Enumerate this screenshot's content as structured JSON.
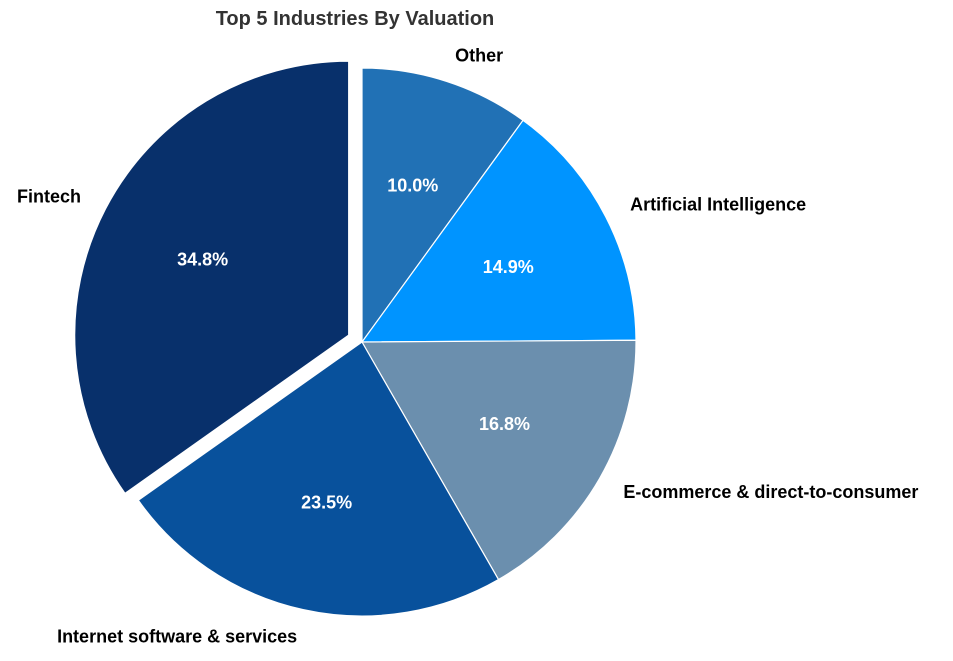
{
  "chart_data": {
    "type": "pie",
    "title": "Top 5 Industries By Valuation",
    "start_angle_deg": 90,
    "direction": "clockwise",
    "slices": [
      {
        "label": "Other",
        "pct_label": "10.0%",
        "value": 10.0,
        "color": "#2171b5",
        "explode": false
      },
      {
        "label": "Artificial Intelligence",
        "pct_label": "14.9%",
        "value": 14.9,
        "color": "#0094ff",
        "explode": false
      },
      {
        "label": "E-commerce & direct-to-consumer",
        "pct_label": "16.8%",
        "value": 16.8,
        "color": "#6b8fae",
        "explode": false
      },
      {
        "label": "Internet software & services",
        "pct_label": "23.5%",
        "value": 23.5,
        "color": "#08519c",
        "explode": false
      },
      {
        "label": "Fintech",
        "pct_label": "34.8%",
        "value": 34.8,
        "color": "#08306b",
        "explode": true
      }
    ]
  }
}
